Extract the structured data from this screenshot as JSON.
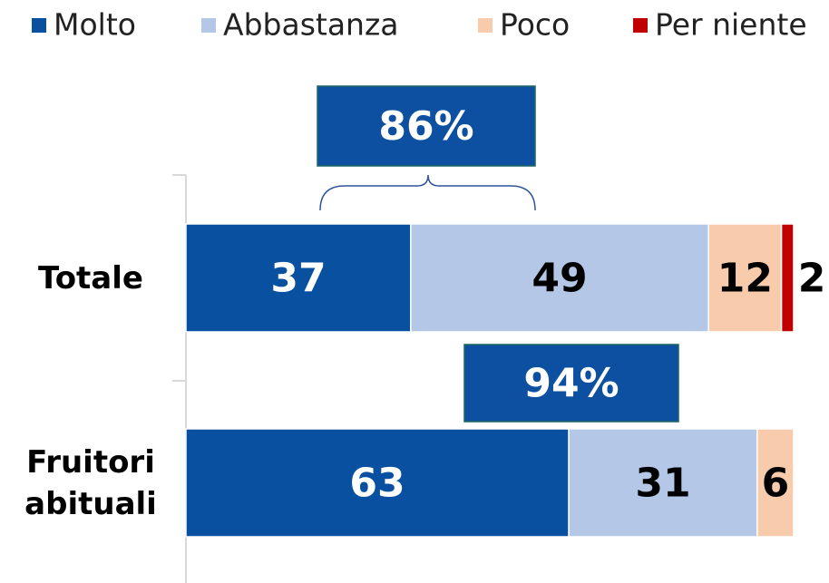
{
  "chart_data": {
    "type": "stacked_barh",
    "categories": [
      "Totale",
      "Fruitori abituali"
    ],
    "series": [
      {
        "name": "Molto",
        "color": "#0a50a1",
        "values": [
          37,
          63
        ]
      },
      {
        "name": "Abbastanza",
        "color": "#b4c7e7",
        "values": [
          49,
          31
        ]
      },
      {
        "name": "Poco",
        "color": "#f8cbad",
        "values": [
          12,
          6
        ]
      },
      {
        "name": "Per niente",
        "color": "#c00000",
        "values": [
          2,
          null
        ]
      }
    ],
    "xlim": [
      0,
      100
    ],
    "annotations": [
      "86%",
      "94%"
    ],
    "legend": "top"
  }
}
